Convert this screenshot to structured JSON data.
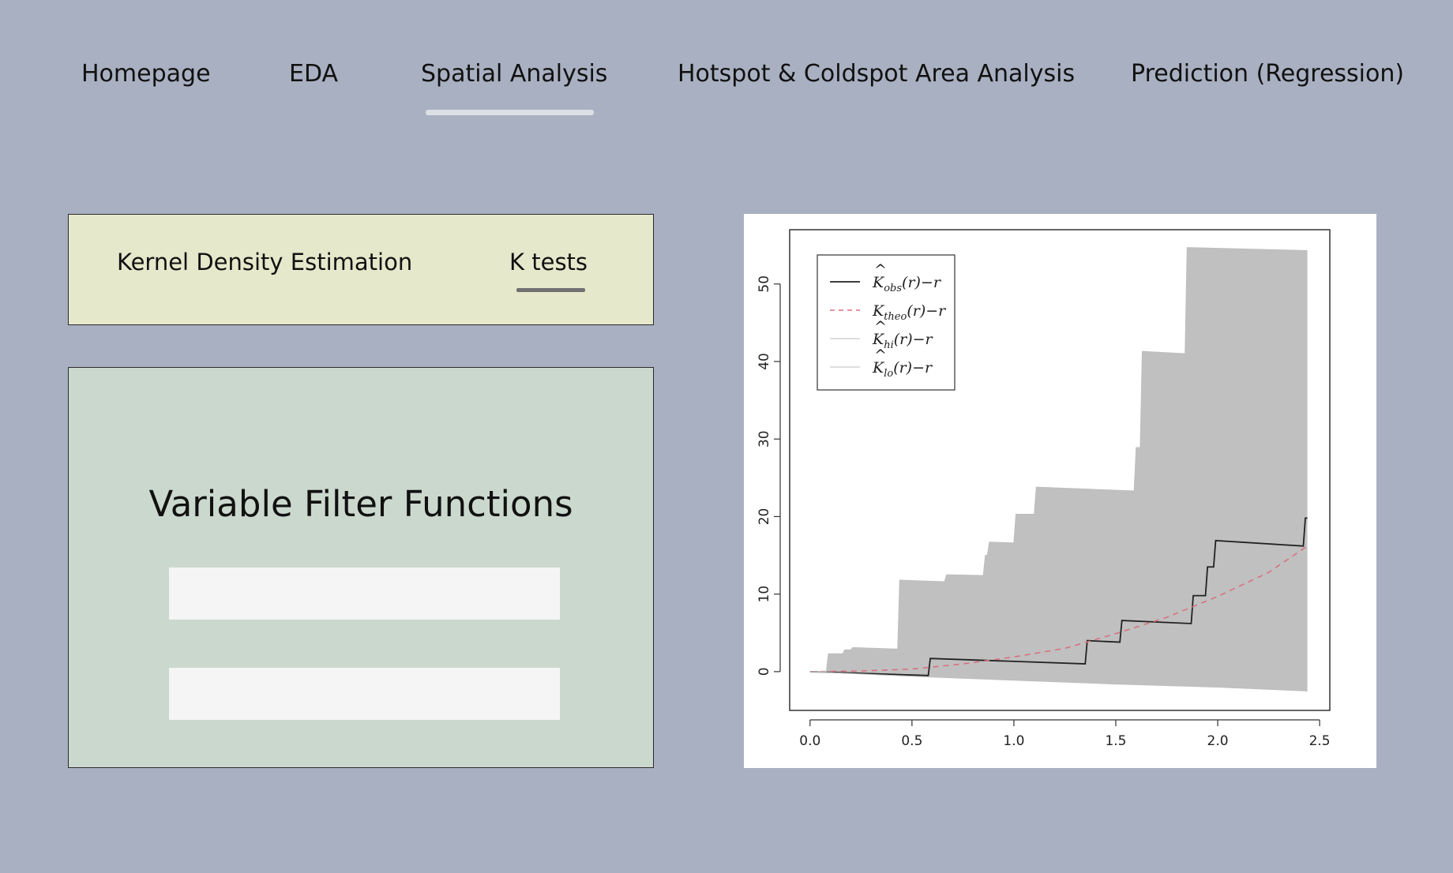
{
  "nav": {
    "items": [
      {
        "label": "Homepage"
      },
      {
        "label": "EDA"
      },
      {
        "label": "Spatial Analysis",
        "active": true
      },
      {
        "label": "Hotspot & Coldspot Area Analysis"
      },
      {
        "label": "Prediction (Regression)"
      }
    ]
  },
  "subnav": {
    "items": [
      {
        "label": "Kernel Density Estimation"
      },
      {
        "label": "K tests",
        "active": true
      }
    ]
  },
  "filter_panel": {
    "title": "Variable Filter Functions",
    "fields": [
      {
        "value": "",
        "placeholder": ""
      },
      {
        "value": "",
        "placeholder": ""
      }
    ]
  },
  "chart_data": {
    "type": "line",
    "xlim": [
      -0.1,
      2.55
    ],
    "ylim": [
      -5,
      57
    ],
    "x_ticks": [
      0.0,
      0.5,
      1.0,
      1.5,
      2.0,
      2.5
    ],
    "x_tick_labels": [
      "0.0",
      "0.5",
      "1.0",
      "1.5",
      "2.0",
      "2.5"
    ],
    "y_ticks": [
      0,
      10,
      20,
      30,
      40,
      50
    ],
    "y_tick_labels": [
      "0",
      "10",
      "20",
      "30",
      "40",
      "50"
    ],
    "legend_position": "top-left",
    "legend": [
      {
        "main": "K",
        "hat": true,
        "sub": "obs",
        "tail": "(r)−r",
        "style": "solid",
        "color": "#222222"
      },
      {
        "main": "K",
        "hat": false,
        "sub": "theo",
        "tail": "(r)−r",
        "style": "dashed",
        "color": "#d9717d"
      },
      {
        "main": "K",
        "hat": true,
        "sub": "hi",
        "tail": "(r)−r",
        "style": "solid",
        "color": "#bdbdbd"
      },
      {
        "main": "K",
        "hat": true,
        "sub": "lo",
        "tail": "(r)−r",
        "style": "solid",
        "color": "#bdbdbd"
      }
    ],
    "envelope_color": "#c0c0c0",
    "series": [
      {
        "name": "obs",
        "color": "#222222",
        "points": [
          [
            0.0,
            0.0
          ],
          [
            0.58,
            -0.5
          ],
          [
            0.59,
            1.7
          ],
          [
            1.35,
            1.0
          ],
          [
            1.36,
            4.0
          ],
          [
            1.52,
            3.8
          ],
          [
            1.53,
            6.6
          ],
          [
            1.87,
            6.2
          ],
          [
            1.88,
            9.8
          ],
          [
            1.94,
            9.8
          ],
          [
            1.95,
            13.5
          ],
          [
            1.98,
            13.5
          ],
          [
            1.99,
            16.9
          ],
          [
            2.42,
            16.2
          ],
          [
            2.43,
            19.8
          ],
          [
            2.44,
            19.8
          ]
        ]
      },
      {
        "name": "theo",
        "color": "#d9717d",
        "points": [
          [
            0.0,
            0.0
          ],
          [
            0.25,
            0.08
          ],
          [
            0.5,
            0.33
          ],
          [
            0.75,
            1.0
          ],
          [
            1.0,
            1.9
          ],
          [
            1.25,
            3.0
          ],
          [
            1.5,
            4.9
          ],
          [
            1.75,
            7.0
          ],
          [
            2.0,
            9.7
          ],
          [
            2.25,
            12.8
          ],
          [
            2.44,
            16.2
          ]
        ]
      },
      {
        "name": "hi",
        "color": "#bdbdbd",
        "points": [
          [
            0.0,
            0.0
          ],
          [
            0.08,
            0.0
          ],
          [
            0.09,
            2.3
          ],
          [
            0.16,
            2.3
          ],
          [
            0.17,
            2.8
          ],
          [
            0.2,
            2.8
          ],
          [
            0.21,
            3.1
          ],
          [
            0.43,
            2.9
          ],
          [
            0.44,
            11.8
          ],
          [
            0.66,
            11.6
          ],
          [
            0.67,
            12.5
          ],
          [
            0.85,
            12.4
          ],
          [
            0.86,
            15.0
          ],
          [
            0.87,
            15.0
          ],
          [
            0.88,
            16.7
          ],
          [
            1.0,
            16.6
          ],
          [
            1.01,
            20.3
          ],
          [
            1.1,
            20.3
          ],
          [
            1.11,
            23.8
          ],
          [
            1.59,
            23.3
          ],
          [
            1.6,
            28.9
          ],
          [
            1.62,
            28.9
          ],
          [
            1.63,
            41.3
          ],
          [
            1.84,
            41.0
          ],
          [
            1.85,
            54.7
          ],
          [
            2.44,
            54.3
          ]
        ]
      },
      {
        "name": "lo",
        "color": "#bdbdbd",
        "points": [
          [
            0.0,
            0.0
          ],
          [
            0.5,
            -0.6
          ],
          [
            1.0,
            -1.1
          ],
          [
            1.5,
            -1.6
          ],
          [
            2.0,
            -2.0
          ],
          [
            2.44,
            -2.5
          ]
        ]
      }
    ]
  }
}
